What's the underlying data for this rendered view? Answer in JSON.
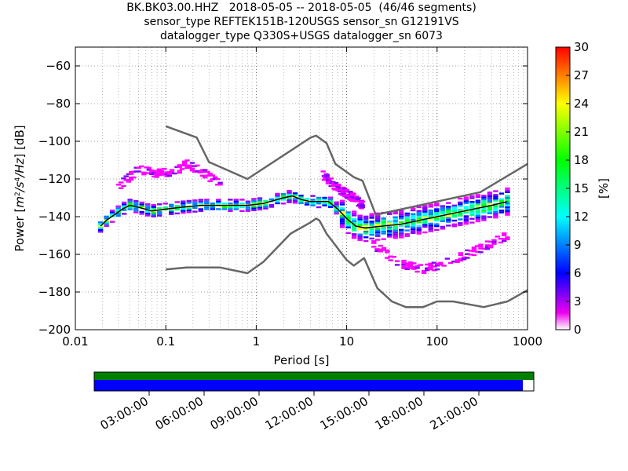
{
  "title_lines": [
    "BK.BK03.00.HHZ   2018-05-05 -- 2018-05-05  (46/46 segments)",
    "sensor_type REFTEK151B-120USGS sensor_sn G12191VS",
    "datalogger_type Q330S+USGS datalogger_sn 6073"
  ],
  "colors": {
    "noise_model": "#666666",
    "mode": "#000000",
    "data_available": "#0000ff",
    "data_used": "#008000"
  },
  "chart_data": {
    "type": "heatmap",
    "xlabel": "Period [s]",
    "ylabel": "Power [m²/s⁴/Hz] [dB]",
    "ylabel_parts": {
      "pre": "Power [",
      "unit": "m",
      "e1": "2",
      "mid1": "/s",
      "e2": "4",
      "mid2": "/Hz",
      "post": "] [dB]"
    },
    "x_scale": "log",
    "xlim": [
      0.01,
      1000
    ],
    "ylim": [
      -200,
      -50
    ],
    "x_ticks": [
      0.01,
      0.1,
      1,
      10,
      100,
      1000
    ],
    "x_tick_labels": [
      "0.01",
      "0.1",
      "1",
      "10",
      "100",
      "1000"
    ],
    "y_ticks": [
      -200,
      -180,
      -160,
      -140,
      -120,
      -100,
      -80,
      -60
    ],
    "y_tick_labels": [
      "−200",
      "−180",
      "−160",
      "−140",
      "−120",
      "−100",
      "−80",
      "−60"
    ],
    "grid": true,
    "colorbar": {
      "label": "[%]",
      "range": [
        0,
        30
      ],
      "ticks": [
        0,
        3,
        6,
        9,
        12,
        15,
        18,
        21,
        24,
        27,
        30
      ],
      "tick_labels": [
        "0",
        "3",
        "6",
        "9",
        "12",
        "15",
        "18",
        "21",
        "24",
        "27",
        "30"
      ],
      "colormap": "pqlx"
    },
    "high_noise_model": [
      [
        0.1,
        -92
      ],
      [
        0.22,
        -98
      ],
      [
        0.3,
        -111
      ],
      [
        0.8,
        -120
      ],
      [
        4.0,
        -98
      ],
      [
        4.6,
        -97
      ],
      [
        6.0,
        -101
      ],
      [
        7.5,
        -112
      ],
      [
        12,
        -119
      ],
      [
        15,
        -121
      ],
      [
        21,
        -139
      ],
      [
        300,
        -127
      ],
      [
        1000,
        -112
      ]
    ],
    "low_noise_model": [
      [
        0.1,
        -168
      ],
      [
        0.17,
        -167
      ],
      [
        0.4,
        -167
      ],
      [
        0.8,
        -170
      ],
      [
        1.2,
        -164
      ],
      [
        2.4,
        -149
      ],
      [
        4.0,
        -143
      ],
      [
        4.6,
        -141
      ],
      [
        5.0,
        -142
      ],
      [
        6.0,
        -149
      ],
      [
        10,
        -163
      ],
      [
        12,
        -166
      ],
      [
        15.6,
        -162
      ],
      [
        21.9,
        -178
      ],
      [
        31.6,
        -185
      ],
      [
        45,
        -188
      ],
      [
        70,
        -188
      ],
      [
        100,
        -185
      ],
      [
        150,
        -185
      ],
      [
        328,
        -188
      ],
      [
        600,
        -185
      ],
      [
        1000,
        -179
      ]
    ],
    "mode": [
      [
        0.019,
        -145
      ],
      [
        0.022,
        -142
      ],
      [
        0.027,
        -139
      ],
      [
        0.033,
        -136
      ],
      [
        0.04,
        -134
      ],
      [
        0.05,
        -135
      ],
      [
        0.07,
        -137
      ],
      [
        0.1,
        -136
      ],
      [
        0.15,
        -135
      ],
      [
        0.25,
        -134
      ],
      [
        0.4,
        -134
      ],
      [
        0.8,
        -134
      ],
      [
        1.2,
        -133
      ],
      [
        2.0,
        -130
      ],
      [
        2.5,
        -129
      ],
      [
        3.2,
        -131
      ],
      [
        4.0,
        -132
      ],
      [
        5.0,
        -132
      ],
      [
        6.3,
        -132
      ],
      [
        8.0,
        -136
      ],
      [
        10,
        -141
      ],
      [
        12.6,
        -145
      ],
      [
        16,
        -146
      ],
      [
        25,
        -145
      ],
      [
        40,
        -144
      ],
      [
        63,
        -142
      ],
      [
        100,
        -140
      ],
      [
        200,
        -137
      ],
      [
        400,
        -134
      ],
      [
        600,
        -132
      ]
    ],
    "segments": {
      "time_ticks": [
        "03:00:00",
        "06:00:00",
        "09:00:00",
        "12:00:00",
        "15:00:00",
        "18:00:00",
        "21:00:00"
      ],
      "time_tick_hours": [
        3,
        6,
        9,
        12,
        15,
        18,
        21
      ],
      "range_hours": [
        0,
        24
      ],
      "data_used_hours": [
        0,
        24
      ],
      "data_available_hours": [
        0,
        23.4
      ]
    },
    "secondary_peaks": [
      {
        "label": "high",
        "points": [
          [
            0.03,
            -124
          ],
          [
            0.05,
            -115
          ],
          [
            0.08,
            -117
          ],
          [
            0.13,
            -116
          ],
          [
            0.17,
            -112
          ],
          [
            0.25,
            -116
          ],
          [
            0.4,
            -123
          ]
        ]
      },
      {
        "label": "ms",
        "points": [
          [
            5.5,
            -118
          ],
          [
            8,
            -125
          ],
          [
            12,
            -130
          ],
          [
            15,
            -134
          ]
        ]
      },
      {
        "label": "low",
        "points": [
          [
            20,
            -155
          ],
          [
            40,
            -165
          ],
          [
            70,
            -168
          ],
          [
            120,
            -165
          ],
          [
            300,
            -157
          ],
          [
            600,
            -150
          ]
        ]
      }
    ]
  }
}
